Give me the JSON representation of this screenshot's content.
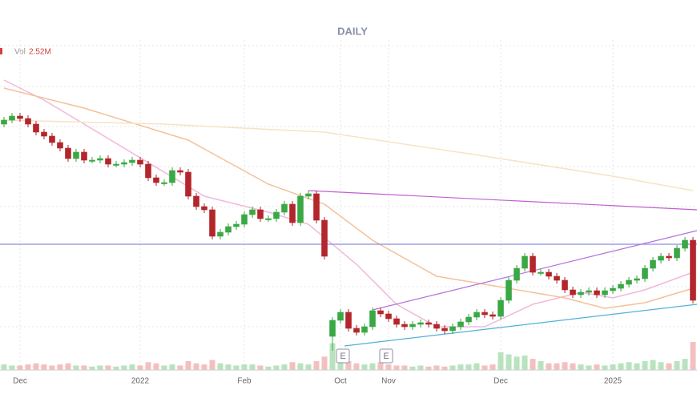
{
  "chart_data": {
    "type": "candlestick",
    "title": "DAILY",
    "volume_name": "Vol",
    "volume_last_label": "2.52M",
    "up_color": "#3aa845",
    "down_color": "#b3262b",
    "categories": [
      null,
      null,
      "Dec",
      null,
      null,
      null,
      null,
      null,
      null,
      null,
      null,
      null,
      null,
      null,
      null,
      null,
      null,
      "2022",
      null,
      null,
      null,
      null,
      null,
      null,
      null,
      null,
      null,
      null,
      null,
      null,
      "Feb",
      null,
      null,
      null,
      null,
      null,
      null,
      null,
      null,
      null,
      null,
      null,
      "Oct",
      null,
      null,
      null,
      null,
      null,
      "Nov",
      null,
      null,
      null,
      null,
      null,
      null,
      null,
      null,
      null,
      null,
      null,
      null,
      null,
      "Dec",
      null,
      null,
      null,
      null,
      null,
      null,
      null,
      null,
      null,
      null,
      null,
      null,
      null,
      "2025",
      null,
      null,
      null,
      null,
      null,
      null,
      null,
      null,
      null,
      null
    ],
    "open": [
      345,
      350,
      355,
      352,
      345,
      335,
      330,
      322,
      315,
      302,
      310,
      300,
      300,
      302,
      295,
      295,
      297,
      300,
      295,
      278,
      272,
      272,
      287,
      285,
      255,
      242,
      238,
      205,
      210,
      217,
      220,
      232,
      238,
      227,
      227,
      235,
      245,
      222,
      255,
      258,
      225,
      80,
      100,
      110,
      90,
      85,
      92,
      112,
      108,
      102,
      95,
      92,
      95,
      97,
      95,
      90,
      87,
      92,
      98,
      104,
      110,
      107,
      105,
      125,
      150,
      165,
      180,
      160,
      160,
      155,
      150,
      138,
      132,
      135,
      137,
      132,
      137,
      140,
      145,
      150,
      152,
      165,
      175,
      180,
      178,
      190,
      200
    ],
    "high": [
      354,
      359,
      359,
      356,
      349,
      339,
      334,
      326,
      319,
      314,
      314,
      304,
      306,
      306,
      299,
      301,
      304,
      304,
      299,
      282,
      276,
      291,
      291,
      289,
      259,
      246,
      242,
      214,
      221,
      224,
      236,
      242,
      242,
      231,
      239,
      249,
      249,
      259,
      262,
      262,
      229,
      104,
      114,
      114,
      94,
      96,
      116,
      116,
      112,
      106,
      99,
      99,
      101,
      101,
      99,
      94,
      96,
      102,
      108,
      114,
      114,
      111,
      129,
      154,
      169,
      184,
      184,
      164,
      164,
      159,
      154,
      142,
      139,
      141,
      141,
      141,
      144,
      149,
      154,
      156,
      169,
      179,
      184,
      184,
      194,
      204,
      204
    ],
    "low": [
      341,
      346,
      348,
      341,
      331,
      326,
      318,
      311,
      298,
      298,
      296,
      296,
      296,
      291,
      291,
      291,
      293,
      291,
      274,
      268,
      268,
      268,
      281,
      251,
      238,
      234,
      201,
      201,
      206,
      213,
      216,
      228,
      223,
      223,
      223,
      231,
      218,
      218,
      251,
      221,
      176,
      62,
      96,
      86,
      81,
      81,
      88,
      104,
      98,
      91,
      88,
      88,
      91,
      91,
      86,
      83,
      83,
      88,
      94,
      100,
      103,
      101,
      101,
      121,
      146,
      161,
      156,
      156,
      151,
      146,
      134,
      128,
      128,
      131,
      128,
      128,
      133,
      136,
      141,
      146,
      148,
      161,
      171,
      174,
      174,
      186,
      121
    ],
    "close": [
      350,
      355,
      352,
      345,
      335,
      330,
      322,
      315,
      302,
      310,
      300,
      300,
      302,
      295,
      295,
      297,
      300,
      295,
      278,
      272,
      272,
      287,
      285,
      255,
      242,
      238,
      205,
      210,
      217,
      220,
      232,
      238,
      227,
      227,
      235,
      245,
      222,
      255,
      258,
      225,
      180,
      100,
      110,
      90,
      85,
      92,
      112,
      108,
      102,
      95,
      92,
      95,
      97,
      95,
      90,
      87,
      92,
      98,
      104,
      110,
      107,
      105,
      125,
      150,
      165,
      180,
      160,
      160,
      155,
      150,
      138,
      132,
      135,
      137,
      132,
      137,
      140,
      145,
      150,
      152,
      165,
      175,
      180,
      178,
      190,
      200,
      125
    ],
    "volume": [
      0.5,
      0.4,
      0.4,
      0.5,
      0.6,
      0.5,
      0.4,
      0.5,
      0.6,
      0.4,
      0.4,
      0.3,
      0.4,
      0.4,
      0.3,
      0.4,
      0.5,
      0.4,
      0.7,
      0.6,
      0.4,
      0.5,
      0.4,
      0.8,
      0.6,
      0.5,
      0.9,
      0.6,
      0.5,
      0.4,
      0.5,
      0.5,
      0.4,
      0.3,
      0.4,
      0.5,
      0.7,
      0.6,
      0.5,
      0.8,
      1.2,
      2.4,
      1.0,
      0.8,
      0.6,
      0.5,
      0.6,
      0.7,
      0.5,
      0.4,
      0.4,
      0.3,
      0.4,
      0.3,
      0.4,
      0.3,
      0.4,
      0.5,
      0.5,
      0.6,
      0.4,
      0.5,
      1.6,
      1.4,
      1.2,
      1.3,
      1.0,
      0.8,
      0.6,
      0.6,
      0.7,
      0.6,
      0.5,
      0.4,
      0.5,
      0.4,
      0.5,
      0.6,
      0.7,
      0.6,
      0.8,
      0.9,
      0.7,
      0.6,
      0.8,
      1.0,
      2.52
    ],
    "averages": [
      {
        "color": "#f0b8dc",
        "x": [
          0,
          5,
          15,
          25,
          33,
          38,
          44,
          49,
          54,
          60,
          66,
          72,
          76,
          80,
          86
        ],
        "values": [
          400,
          375,
          315,
          255,
          235,
          220,
          170,
          120,
          92,
          92,
          120,
          135,
          128,
          138,
          160
        ]
      },
      {
        "color": "#f3c199",
        "x": [
          0,
          10,
          23,
          33,
          40,
          46,
          54,
          60,
          70,
          75,
          80,
          86
        ],
        "values": [
          390,
          365,
          325,
          270,
          245,
          200,
          155,
          145,
          128,
          115,
          122,
          140
        ]
      },
      {
        "color": "#f7e3c4",
        "x": [
          0,
          20,
          40,
          60,
          76,
          86
        ],
        "values": [
          350,
          345,
          335,
          305,
          280,
          262
        ]
      }
    ],
    "earnings_markers": [
      "E",
      "E"
    ]
  }
}
